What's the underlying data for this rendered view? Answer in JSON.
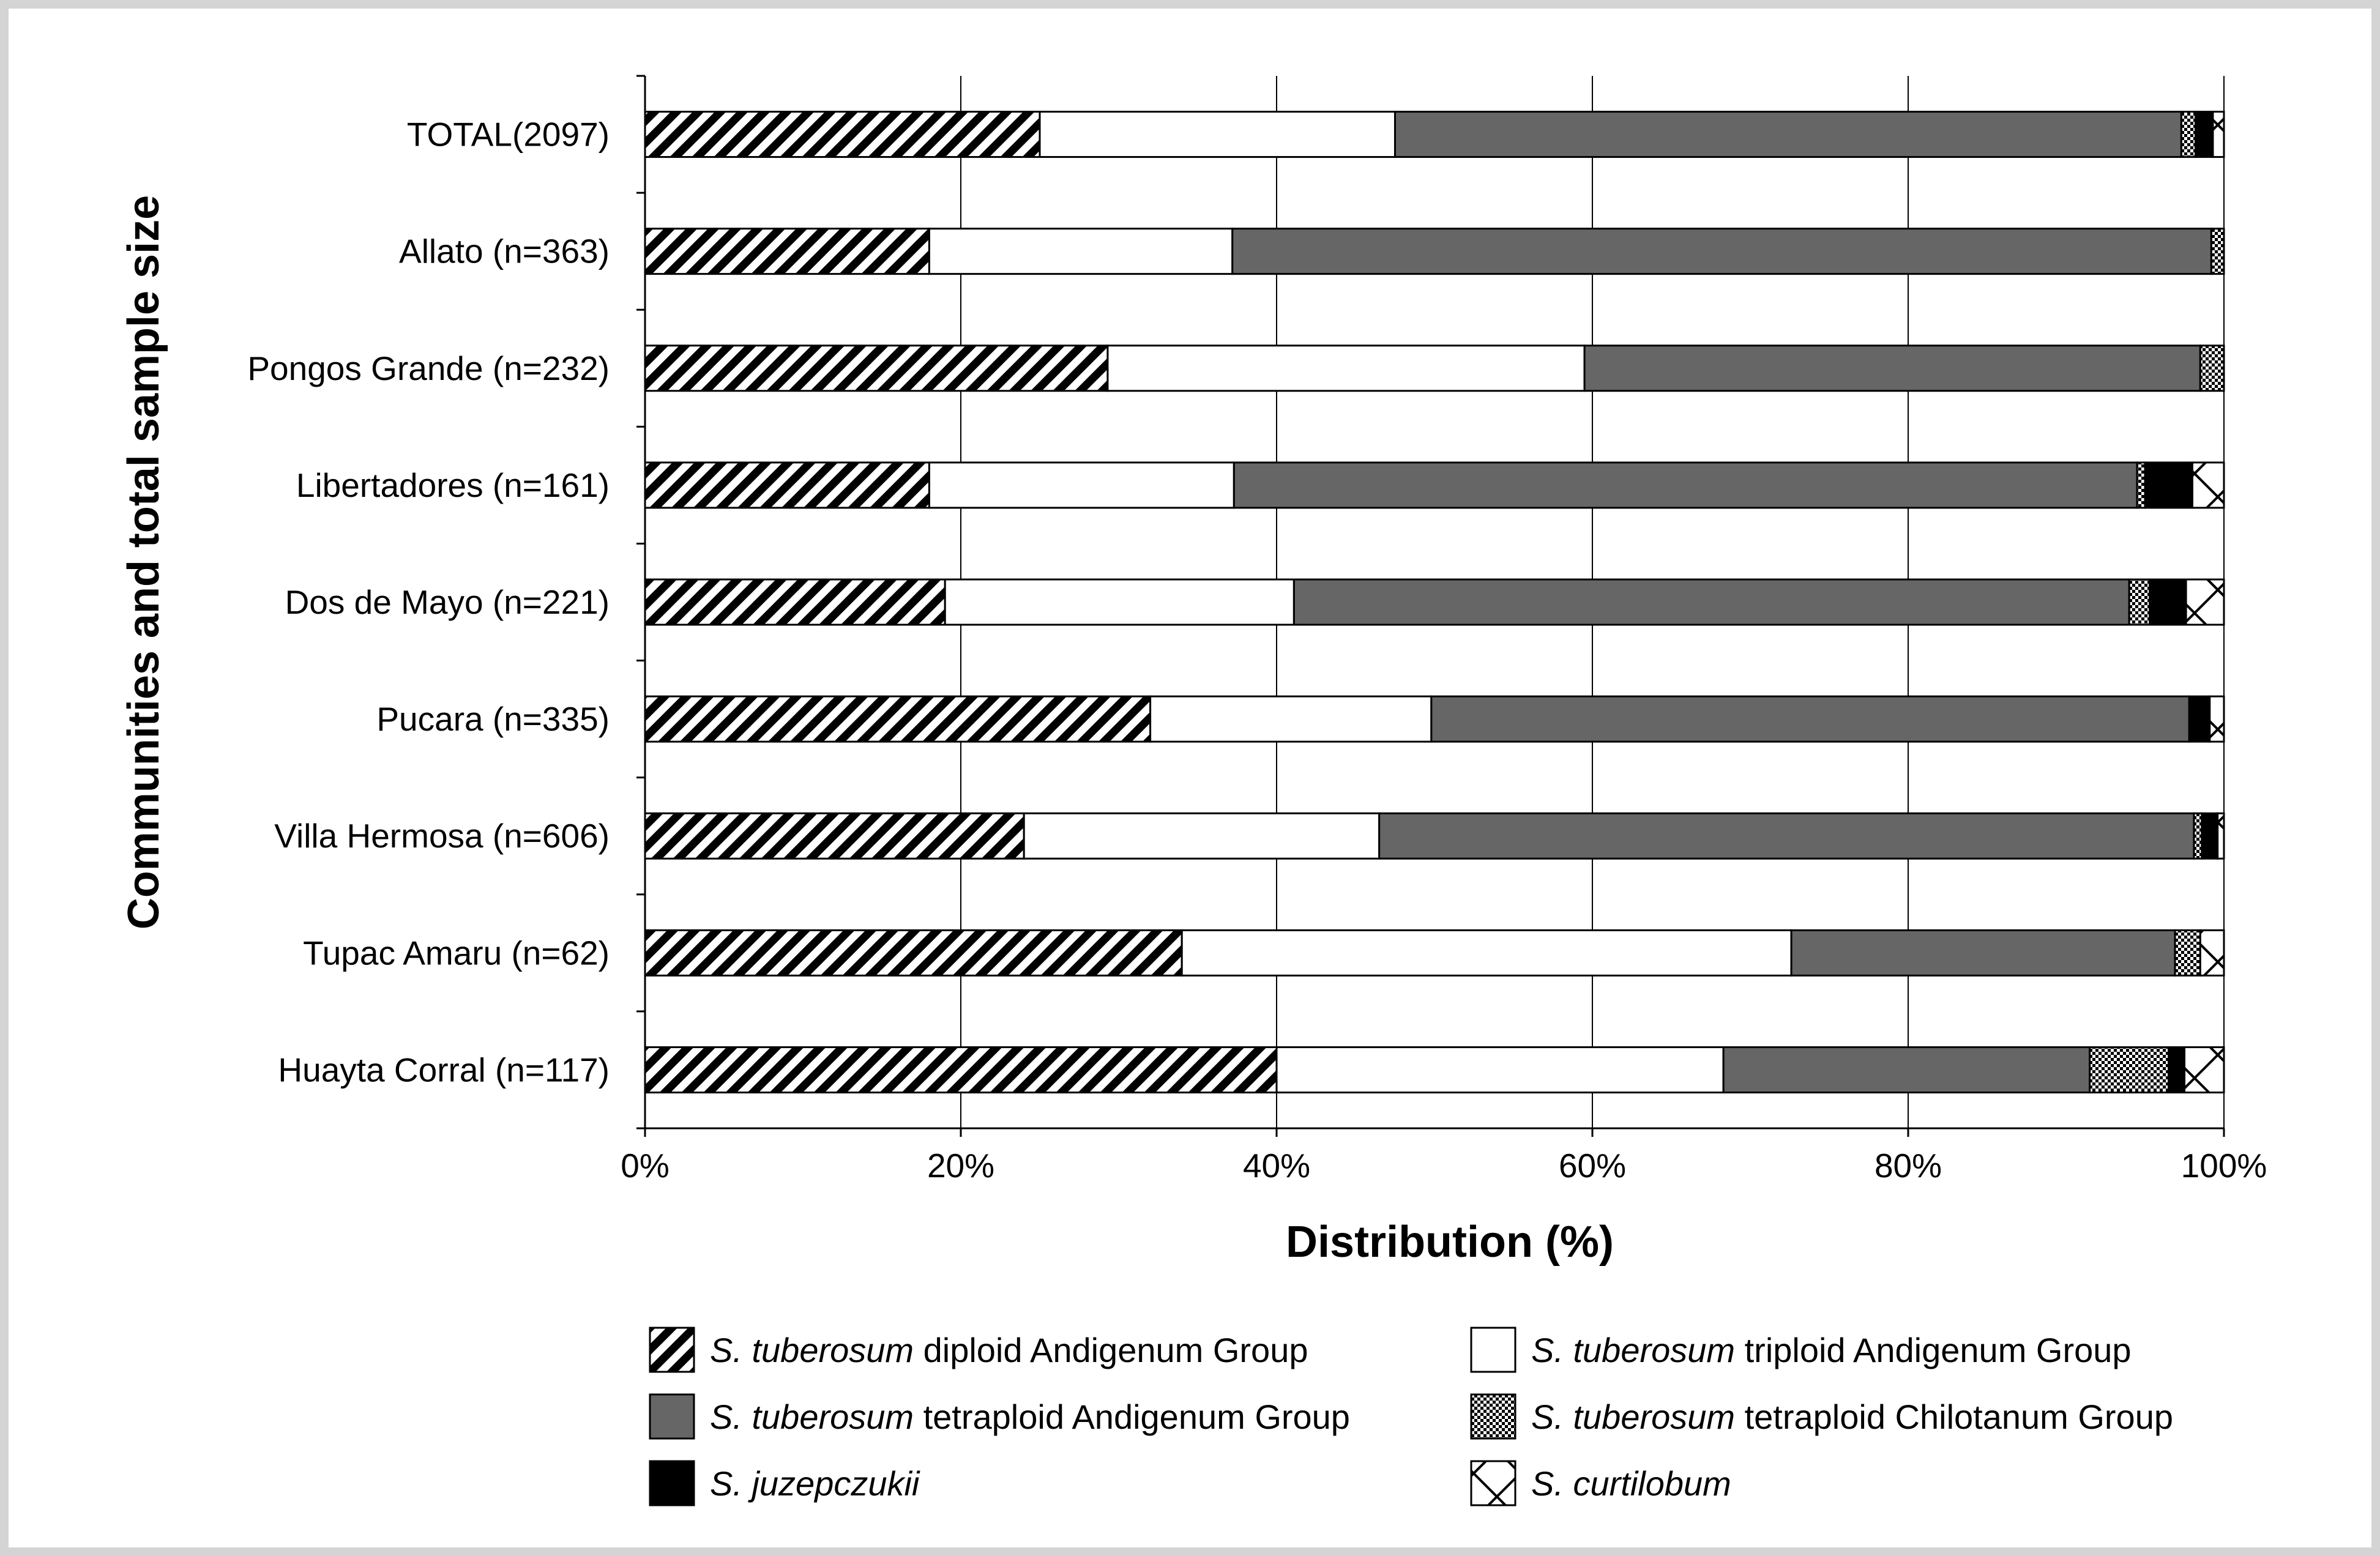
{
  "chart_data": {
    "type": "bar",
    "orientation": "horizontal",
    "stacked": true,
    "percent": true,
    "xlabel": "Distribution (%)",
    "ylabel": "Communities and total sample size",
    "xlim": [
      0,
      100
    ],
    "x_ticks": [
      "0%",
      "20%",
      "40%",
      "60%",
      "80%",
      "100%"
    ],
    "grid": "vertical",
    "legend_position": "bottom",
    "categories": [
      "TOTAL(2097)",
      "Allato (n=363)",
      "Pongos Grande (n=232)",
      "Libertadores (n=161)",
      "Dos de Mayo (n=221)",
      "Pucara (n=335)",
      "Villa Hermosa (n=606)",
      "Tupac Amaru (n=62)",
      "Huayta Corral (n=117)"
    ],
    "series": [
      {
        "name_italic": "S. tuberosum",
        "name_rest": " diploid Andigenum Group",
        "pattern": "diagonal",
        "color": "#000000",
        "values": [
          25.0,
          18.0,
          29.3,
          18.0,
          19.0,
          32.0,
          24.0,
          34.0,
          40.0
        ]
      },
      {
        "name_italic": "S. tuberosum",
        "name_rest": " triploid Andigenum Group",
        "pattern": "white",
        "color": "#ffffff",
        "values": [
          22.5,
          19.2,
          30.2,
          19.3,
          22.1,
          17.8,
          22.5,
          38.6,
          28.3
        ]
      },
      {
        "name_italic": "S. tuberosum",
        "name_rest": " tetraploid Andigenum Group",
        "pattern": "solid-gray",
        "color": "#666666",
        "values": [
          49.8,
          62.0,
          39.0,
          57.2,
          52.9,
          48.0,
          51.6,
          24.3,
          23.2
        ]
      },
      {
        "name_italic": "S. tuberosum",
        "name_rest": " tetraploid Chilotanum Group",
        "pattern": "checker",
        "color": "#000000",
        "values": [
          0.9,
          0.8,
          1.5,
          0.5,
          1.3,
          0.0,
          0.5,
          1.6,
          5.0
        ]
      },
      {
        "name_italic": "S. juzepczukii",
        "name_rest": "",
        "pattern": "solid-black",
        "color": "#000000",
        "values": [
          1.1,
          0.0,
          0.0,
          3.0,
          2.3,
          1.3,
          1.0,
          0.0,
          1.0
        ]
      },
      {
        "name_italic": "S. curtilobum",
        "name_rest": "",
        "pattern": "cross",
        "color": "#000000",
        "values": [
          0.7,
          0.0,
          0.0,
          2.0,
          2.4,
          0.9,
          0.4,
          1.5,
          2.5
        ]
      }
    ]
  }
}
